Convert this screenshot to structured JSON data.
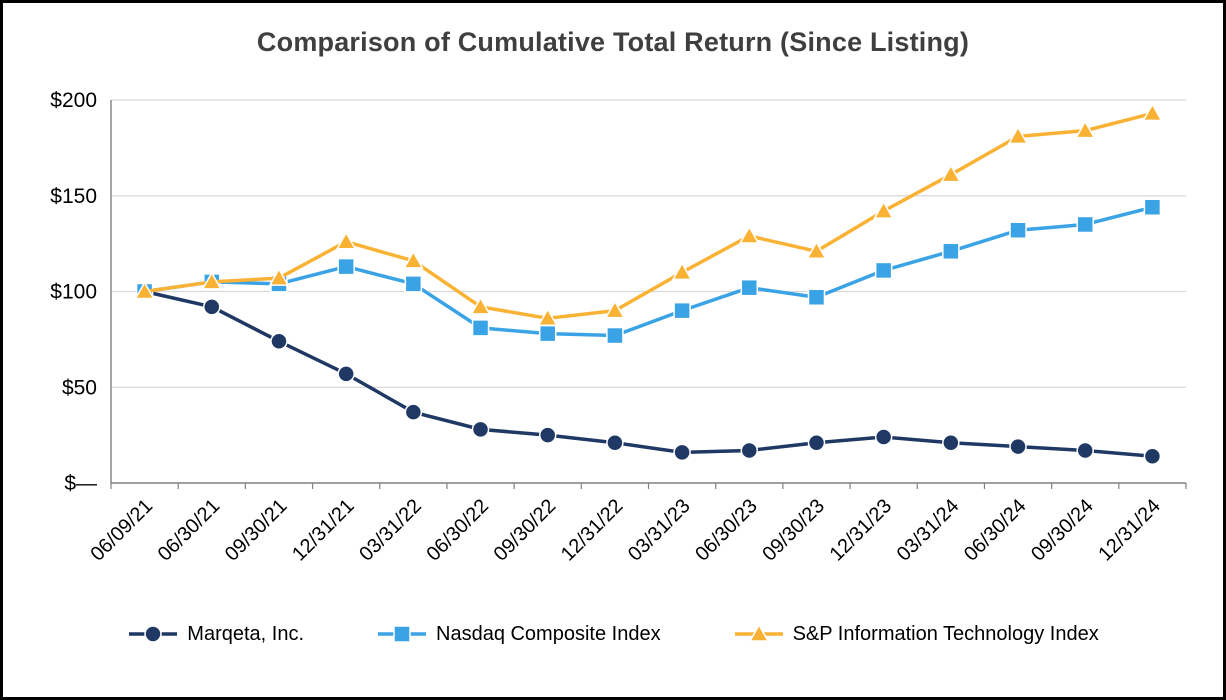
{
  "title": "Comparison of Cumulative Total Return (Since Listing)",
  "colors": {
    "marqeta": "#1F3864",
    "nasdaq": "#3AA3E6",
    "sp_it": "#F9B234",
    "gridline": "#D9D9D9",
    "axis": "#808080",
    "title_text": "#3F3F3F",
    "frame": "#000000"
  },
  "chart_data": {
    "type": "line",
    "title": "Comparison of Cumulative Total Return (Since Listing)",
    "xlabel": "",
    "ylabel": "",
    "ylim": [
      0,
      200
    ],
    "grid": true,
    "legend_position": "bottom",
    "yticks": [
      {
        "value": 0,
        "label": "$—"
      },
      {
        "value": 50,
        "label": "$50"
      },
      {
        "value": 100,
        "label": "$100"
      },
      {
        "value": 150,
        "label": "$150"
      },
      {
        "value": 200,
        "label": "$200"
      }
    ],
    "categories": [
      "06/09/21",
      "06/30/21",
      "09/30/21",
      "12/31/21",
      "03/31/22",
      "06/30/22",
      "09/30/22",
      "12/31/22",
      "03/31/23",
      "06/30/23",
      "09/30/23",
      "12/31/23",
      "03/31/24",
      "06/30/24",
      "09/30/24",
      "12/31/24"
    ],
    "series": [
      {
        "name": "Marqeta, Inc.",
        "marker": "circle",
        "color": "#1F3864",
        "values": [
          100,
          92,
          74,
          57,
          37,
          28,
          25,
          21,
          16,
          17,
          21,
          24,
          21,
          19,
          17,
          14
        ]
      },
      {
        "name": "Nasdaq Composite Index",
        "marker": "square",
        "color": "#3AA3E6",
        "values": [
          100,
          105,
          104,
          113,
          104,
          81,
          78,
          77,
          90,
          102,
          97,
          111,
          121,
          132,
          135,
          144
        ]
      },
      {
        "name": "S&P Information Technology Index",
        "marker": "triangle",
        "color": "#F9B234",
        "values": [
          100,
          105,
          107,
          126,
          116,
          92,
          86,
          90,
          110,
          129,
          121,
          142,
          161,
          181,
          184,
          193
        ]
      }
    ]
  }
}
